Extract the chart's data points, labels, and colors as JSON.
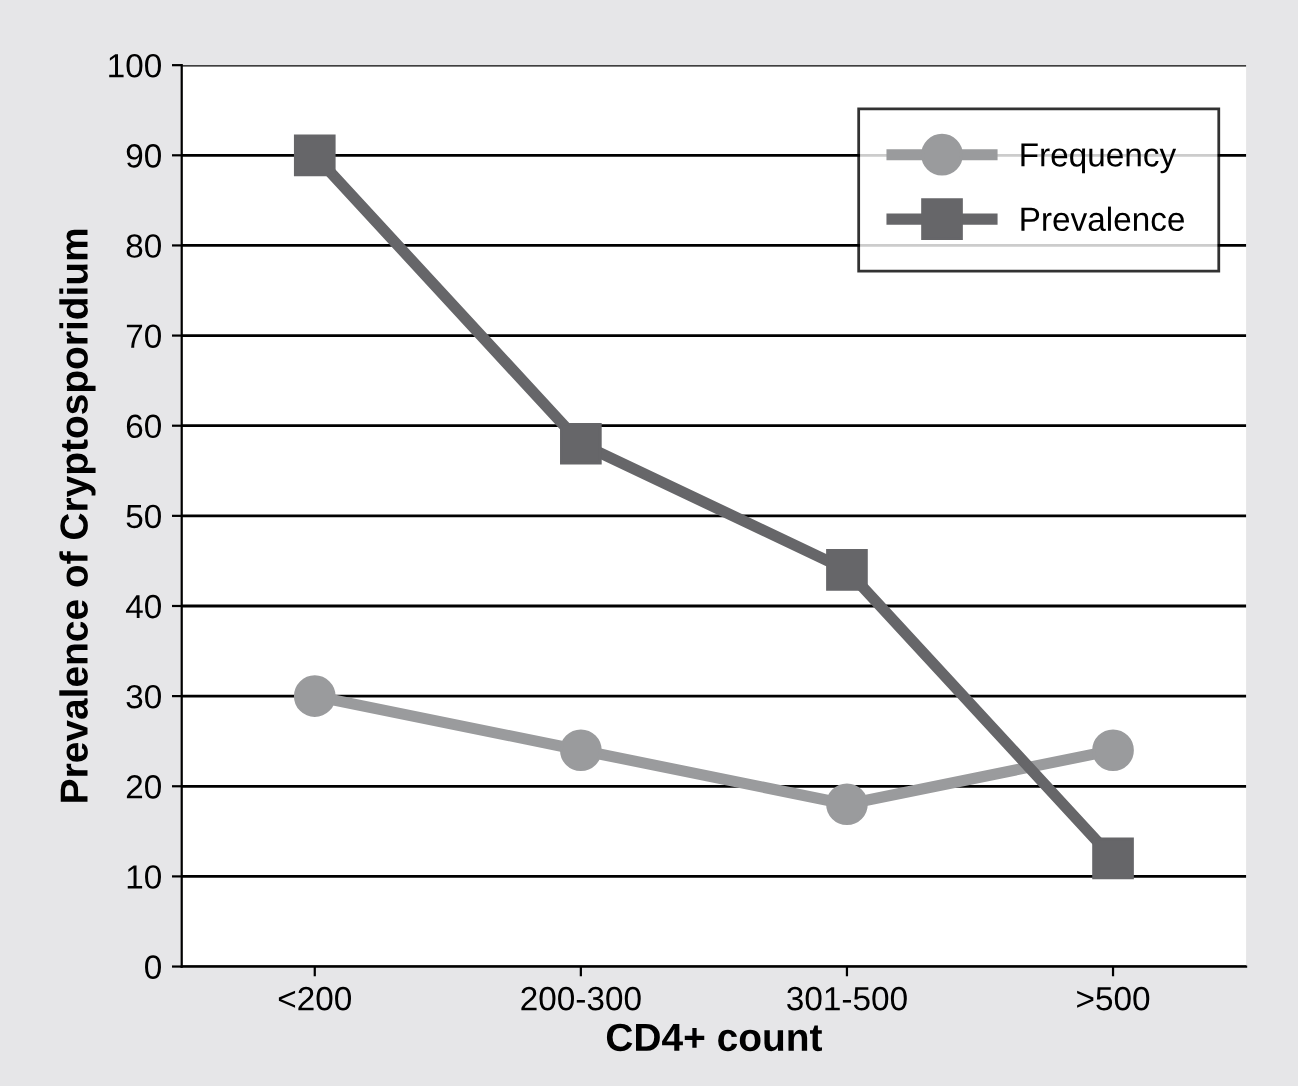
{
  "chart_data": {
    "type": "line",
    "xlabel": "CD4+ count",
    "ylabel": "Prevalence of Cryptosporidium",
    "categories": [
      "<200",
      "200-300",
      "301-500",
      ">500"
    ],
    "series": [
      {
        "name": "Frequency",
        "color": "#9a9b9d",
        "marker": "circle",
        "values": [
          30,
          24,
          18,
          24
        ]
      },
      {
        "name": "Prevalence",
        "color": "#666669",
        "marker": "square",
        "values": [
          90,
          58,
          44,
          12
        ]
      }
    ],
    "ylim": [
      0,
      100
    ],
    "yticks": [
      0,
      10,
      20,
      30,
      40,
      50,
      60,
      70,
      80,
      90,
      100
    ],
    "grid": "y",
    "legend": "top right",
    "line_style": "solid"
  }
}
